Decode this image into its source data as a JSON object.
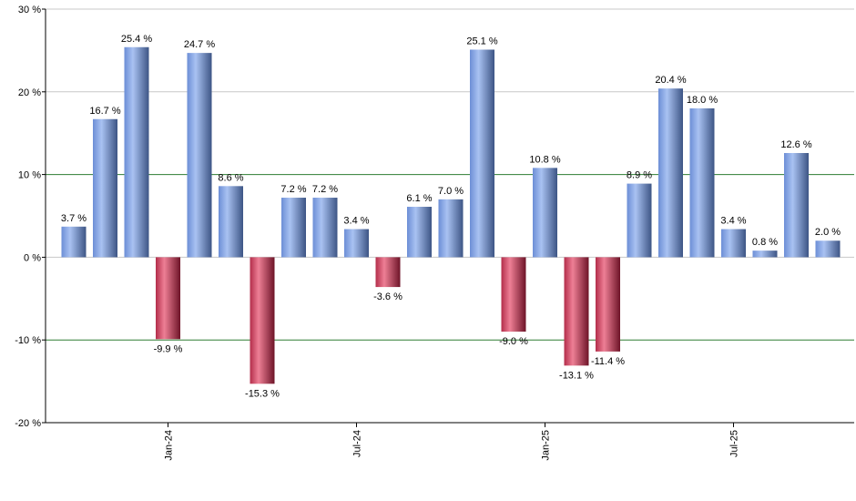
{
  "chart_data": {
    "type": "bar",
    "title": "",
    "xlabel": "",
    "ylabel": "",
    "ylim": [
      -20,
      30
    ],
    "y_ticks": [
      "30 %",
      "20 %",
      "10 %",
      "0 %",
      "-10 %",
      "-20 %"
    ],
    "x_tick_labels": [
      {
        "label": "Jan-24",
        "index": 3
      },
      {
        "label": "Jul-24",
        "index": 9
      },
      {
        "label": "Jan-25",
        "index": 15
      },
      {
        "label": "Jul-25",
        "index": 21
      }
    ],
    "values": [
      3.7,
      16.7,
      25.4,
      -9.9,
      24.7,
      8.6,
      -15.3,
      7.2,
      7.2,
      3.4,
      -3.6,
      6.1,
      7.0,
      25.1,
      -9.0,
      10.8,
      -13.1,
      -11.4,
      8.9,
      20.4,
      18.0,
      3.4,
      0.8,
      12.6,
      2.0
    ],
    "data_labels": [
      "3.7 %",
      "16.7 %",
      "25.4 %",
      "-9.9 %",
      "24.7 %",
      "8.6 %",
      "-15.3 %",
      "7.2 %",
      "7.2 %",
      "3.4 %",
      "-3.6 %",
      "6.1 %",
      "7.0 %",
      "25.1 %",
      "-9.0 %",
      "10.8 %",
      "-13.1 %",
      "-11.4 %",
      "8.9 %",
      "20.4 %",
      "18.0 %",
      "3.4 %",
      "0.8 %",
      "12.6 %",
      "2.0 %"
    ],
    "grid": true,
    "highlight_gridlines": [
      10,
      -10
    ],
    "colors": {
      "positive": "#7f9fdc",
      "positive_dark": "#465f94",
      "negative": "#c23a58",
      "negative_dark": "#7a1a30",
      "grid": "#c8c8c8",
      "highlight_grid": "#2e7d32",
      "axis": "#000000"
    }
  }
}
